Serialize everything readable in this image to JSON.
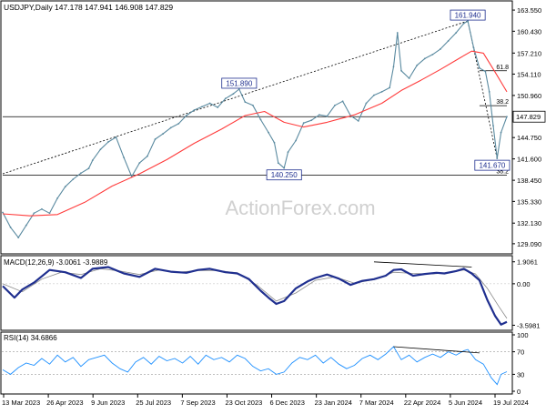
{
  "chart_data": {
    "type": "line",
    "symbol": "USDJPY",
    "timeframe": "Daily",
    "ohlc": {
      "open": 147.178,
      "high": 147.941,
      "low": 146.908,
      "close": 147.829
    },
    "header_text": "USDJPY,Daily  147.178 147.941 146.908 147.829",
    "watermark": "ActionForex.com",
    "x_ticks": [
      "13 Mar 2023",
      "26 Apr 2023",
      "9 Jun 2023",
      "25 Jul 2023",
      "7 Sep 2023",
      "23 Oct 2023",
      "6 Dec 2023",
      "23 Jan 2024",
      "7 Mar 2024",
      "22 Apr 2024",
      "5 Jun 2024",
      "19 Jul 2024"
    ],
    "price_panel": {
      "ylim": [
        128.0,
        164.5
      ],
      "y_ticks": [
        "163.550",
        "160.430",
        "157.210",
        "154.110",
        "150.960",
        "147.829",
        "144.750",
        "141.600",
        "138.450",
        "135.330",
        "132.130",
        "129.090"
      ],
      "y_tick_values": [
        163.55,
        160.43,
        157.21,
        154.11,
        150.96,
        147.829,
        144.75,
        141.6,
        138.45,
        135.33,
        132.13,
        129.09
      ],
      "current_price_label": "147.829",
      "series": [
        {
          "name": "",
          "kind": "price",
          "color": "#5a8aa0",
          "points": [
            [
              0,
              133.7
            ],
            [
              4,
              131.5
            ],
            [
              8,
              130.0
            ],
            [
              12,
              131.8
            ],
            [
              16,
              133.6
            ],
            [
              20,
              134.2
            ],
            [
              24,
              133.6
            ],
            [
              28,
              135.8
            ],
            [
              32,
              137.5
            ],
            [
              36,
              138.6
            ],
            [
              40,
              139.5
            ],
            [
              44,
              140.2
            ],
            [
              46,
              141.4
            ],
            [
              50,
              143.0
            ],
            [
              54,
              144.1
            ],
            [
              58,
              144.8
            ],
            [
              62,
              141.8
            ],
            [
              66,
              139.0
            ],
            [
              70,
              141.0
            ],
            [
              74,
              142.0
            ],
            [
              78,
              144.5
            ],
            [
              82,
              145.3
            ],
            [
              86,
              146.2
            ],
            [
              90,
              146.8
            ],
            [
              94,
              148.0
            ],
            [
              98,
              148.8
            ],
            [
              102,
              149.3
            ],
            [
              106,
              149.8
            ],
            [
              110,
              149.2
            ],
            [
              114,
              150.5
            ],
            [
              118,
              151.2
            ],
            [
              121,
              151.89
            ],
            [
              124,
              150.0
            ],
            [
              128,
              149.5
            ],
            [
              132,
              147.4
            ],
            [
              136,
              145.5
            ],
            [
              139,
              144.0
            ],
            [
              141,
              141.0
            ],
            [
              144,
              140.25
            ],
            [
              146,
              142.6
            ],
            [
              150,
              144.3
            ],
            [
              154,
              146.9
            ],
            [
              158,
              147.3
            ],
            [
              162,
              148.1
            ],
            [
              166,
              147.9
            ],
            [
              170,
              149.5
            ],
            [
              174,
              150.1
            ],
            [
              178,
              148.0
            ],
            [
              182,
              147.2
            ],
            [
              186,
              149.8
            ],
            [
              190,
              151.0
            ],
            [
              194,
              151.5
            ],
            [
              198,
              152.1
            ],
            [
              200,
              155.2
            ],
            [
              202,
              160.2
            ],
            [
              204,
              154.6
            ],
            [
              208,
              153.5
            ],
            [
              212,
              155.4
            ],
            [
              216,
              156.4
            ],
            [
              220,
              157.0
            ],
            [
              224,
              157.8
            ],
            [
              228,
              159.0
            ],
            [
              232,
              160.2
            ],
            [
              236,
              161.6
            ],
            [
              238,
              161.94
            ],
            [
              241,
              158.0
            ],
            [
              244,
              155.0
            ],
            [
              247,
              154.5
            ],
            [
              249,
              151.5
            ],
            [
              251,
              146.5
            ],
            [
              253,
              141.67
            ],
            [
              255,
              145.5
            ],
            [
              258,
              147.829
            ]
          ]
        },
        {
          "name": "",
          "kind": "moving_average",
          "color": "#ff3b3b",
          "points": [
            [
              0,
              133.5
            ],
            [
              14,
              133.2
            ],
            [
              28,
              133.4
            ],
            [
              42,
              135.2
            ],
            [
              56,
              137.6
            ],
            [
              70,
              139.4
            ],
            [
              84,
              141.5
            ],
            [
              98,
              143.9
            ],
            [
              112,
              146.0
            ],
            [
              124,
              148.0
            ],
            [
              134,
              148.6
            ],
            [
              144,
              147.0
            ],
            [
              154,
              146.3
            ],
            [
              166,
              147.0
            ],
            [
              180,
              148.1
            ],
            [
              194,
              149.8
            ],
            [
              204,
              151.7
            ],
            [
              214,
              153.2
            ],
            [
              224,
              154.8
            ],
            [
              234,
              156.5
            ],
            [
              240,
              157.5
            ],
            [
              246,
              157.2
            ],
            [
              252,
              154.4
            ],
            [
              258,
              151.5
            ]
          ]
        }
      ],
      "annotations": [
        {
          "text": "161.940",
          "x": 238,
          "y": 161.94
        },
        {
          "text": "151.890",
          "x": 121,
          "y": 151.89
        },
        {
          "text": "140.250",
          "x": 144,
          "y": 140.25
        },
        {
          "text": "141.670",
          "x": 253,
          "y": 141.67
        }
      ],
      "lines": [
        {
          "kind": "trendline",
          "from": [
            0,
            139.4
          ],
          "to": [
            238,
            161.94
          ]
        },
        {
          "kind": "trendline",
          "from": [
            238,
            161.94
          ],
          "to": [
            253,
            141.67
          ]
        },
        {
          "kind": "horizontal",
          "y": 147.829,
          "from_x": 0,
          "to_x": 258
        },
        {
          "kind": "horizontal",
          "y": 139.2,
          "from_x": 0,
          "to_x": 258
        },
        {
          "kind": "horizontal",
          "y": 154.6,
          "from_x": 244,
          "to_x": 258
        },
        {
          "kind": "horizontal",
          "y": 149.45,
          "from_x": 244,
          "to_x": 258
        }
      ],
      "fib_labels": [
        {
          "text": "61.8",
          "y": 154.6
        },
        {
          "text": "38.2",
          "y": 149.45
        },
        {
          "text": "38.2",
          "y": 139.2
        }
      ]
    },
    "macd_panel": {
      "title": "MACD(12,26,9) -3.0061 -3.9889",
      "ylim": [
        -3.8,
        2.2
      ],
      "y_ticks": [
        "1.9061",
        "0.00",
        "-3.5981"
      ],
      "y_tick_values": [
        1.9061,
        0.0,
        -3.5981
      ],
      "macd": {
        "color": "#1f2f8f",
        "points": [
          [
            0,
            -0.2
          ],
          [
            6,
            -1.2
          ],
          [
            10,
            -0.5
          ],
          [
            16,
            0.1
          ],
          [
            24,
            1.2
          ],
          [
            32,
            1.0
          ],
          [
            40,
            0.5
          ],
          [
            46,
            1.3
          ],
          [
            54,
            1.45
          ],
          [
            62,
            0.9
          ],
          [
            70,
            0.6
          ],
          [
            78,
            1.3
          ],
          [
            86,
            1.05
          ],
          [
            94,
            0.95
          ],
          [
            100,
            1.2
          ],
          [
            106,
            1.3
          ],
          [
            114,
            1.0
          ],
          [
            120,
            0.9
          ],
          [
            126,
            0.4
          ],
          [
            132,
            -0.6
          ],
          [
            136,
            -1.2
          ],
          [
            140,
            -1.75
          ],
          [
            144,
            -1.5
          ],
          [
            150,
            -0.4
          ],
          [
            156,
            0.2
          ],
          [
            160,
            0.5
          ],
          [
            166,
            0.8
          ],
          [
            172,
            0.45
          ],
          [
            178,
            -0.1
          ],
          [
            184,
            0.25
          ],
          [
            190,
            0.4
          ],
          [
            196,
            0.7
          ],
          [
            200,
            1.2
          ],
          [
            204,
            1.25
          ],
          [
            210,
            0.7
          ],
          [
            216,
            0.85
          ],
          [
            222,
            0.95
          ],
          [
            226,
            0.9
          ],
          [
            232,
            1.1
          ],
          [
            236,
            1.3
          ],
          [
            240,
            0.9
          ],
          [
            244,
            0.3
          ],
          [
            248,
            -1.4
          ],
          [
            252,
            -2.8
          ],
          [
            255,
            -3.55
          ],
          [
            258,
            -3.3
          ]
        ]
      },
      "signal": {
        "color": "#8a8a8a",
        "points": [
          [
            0,
            0.0
          ],
          [
            10,
            -0.7
          ],
          [
            20,
            0.4
          ],
          [
            30,
            1.0
          ],
          [
            40,
            0.8
          ],
          [
            50,
            1.3
          ],
          [
            60,
            1.1
          ],
          [
            70,
            0.8
          ],
          [
            80,
            1.2
          ],
          [
            90,
            1.0
          ],
          [
            100,
            1.15
          ],
          [
            110,
            1.15
          ],
          [
            120,
            0.95
          ],
          [
            130,
            -0.1
          ],
          [
            140,
            -1.5
          ],
          [
            150,
            -0.8
          ],
          [
            160,
            0.3
          ],
          [
            170,
            0.6
          ],
          [
            180,
            0.05
          ],
          [
            190,
            0.35
          ],
          [
            200,
            1.0
          ],
          [
            210,
            0.9
          ],
          [
            220,
            0.85
          ],
          [
            230,
            1.0
          ],
          [
            236,
            1.2
          ],
          [
            242,
            0.85
          ],
          [
            248,
            -0.4
          ],
          [
            254,
            -2.0
          ],
          [
            258,
            -3.0
          ]
        ]
      },
      "divergence_line": {
        "from": [
          190,
          1.9
        ],
        "to": [
          240,
          1.45
        ]
      }
    },
    "rsi_panel": {
      "title": "RSI(14) 34.6866",
      "ylim": [
        0,
        100
      ],
      "y_ticks": [
        "100",
        "70",
        "30",
        "0"
      ],
      "y_tick_values": [
        100,
        70,
        30,
        0
      ],
      "levels": [
        70,
        30
      ],
      "rsi": {
        "color": "#1e90ff",
        "points": [
          [
            0,
            38
          ],
          [
            4,
            30
          ],
          [
            8,
            42
          ],
          [
            12,
            50
          ],
          [
            16,
            46
          ],
          [
            20,
            58
          ],
          [
            24,
            48
          ],
          [
            28,
            64
          ],
          [
            32,
            52
          ],
          [
            36,
            60
          ],
          [
            40,
            44
          ],
          [
            44,
            56
          ],
          [
            48,
            60
          ],
          [
            52,
            64
          ],
          [
            56,
            50
          ],
          [
            60,
            40
          ],
          [
            64,
            34
          ],
          [
            68,
            52
          ],
          [
            72,
            60
          ],
          [
            76,
            48
          ],
          [
            80,
            62
          ],
          [
            84,
            54
          ],
          [
            88,
            58
          ],
          [
            92,
            50
          ],
          [
            96,
            62
          ],
          [
            100,
            48
          ],
          [
            104,
            64
          ],
          [
            108,
            56
          ],
          [
            112,
            60
          ],
          [
            116,
            52
          ],
          [
            120,
            64
          ],
          [
            124,
            58
          ],
          [
            128,
            44
          ],
          [
            132,
            36
          ],
          [
            136,
            40
          ],
          [
            140,
            30
          ],
          [
            144,
            34
          ],
          [
            148,
            50
          ],
          [
            152,
            60
          ],
          [
            156,
            56
          ],
          [
            160,
            64
          ],
          [
            164,
            50
          ],
          [
            168,
            60
          ],
          [
            172,
            48
          ],
          [
            176,
            40
          ],
          [
            180,
            46
          ],
          [
            184,
            58
          ],
          [
            188,
            64
          ],
          [
            192,
            56
          ],
          [
            196,
            66
          ],
          [
            200,
            79
          ],
          [
            204,
            56
          ],
          [
            208,
            64
          ],
          [
            212,
            52
          ],
          [
            216,
            60
          ],
          [
            220,
            66
          ],
          [
            224,
            60
          ],
          [
            228,
            70
          ],
          [
            232,
            64
          ],
          [
            236,
            72
          ],
          [
            238,
            74
          ],
          [
            242,
            56
          ],
          [
            246,
            48
          ],
          [
            250,
            24
          ],
          [
            253,
            12
          ],
          [
            255,
            30
          ],
          [
            258,
            34.69
          ]
        ]
      },
      "divergence_line": {
        "from": [
          200,
          79
        ],
        "to": [
          244,
          68
        ]
      }
    }
  }
}
